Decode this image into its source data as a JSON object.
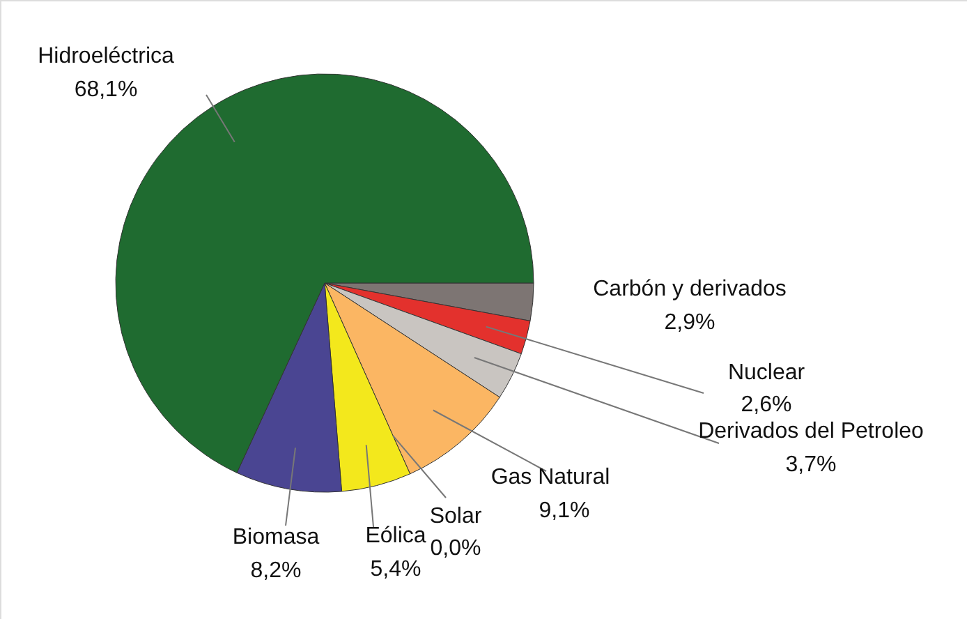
{
  "chart_data": {
    "type": "pie",
    "categories": [
      "Carbón y derivados",
      "Nuclear",
      "Derivados del Petroleo",
      "Gas Natural",
      "Solar",
      "Eólica",
      "Biomasa",
      "Hidroeléctrica"
    ],
    "values": [
      2.9,
      2.6,
      3.7,
      9.1,
      0.0,
      5.4,
      8.2,
      68.1
    ],
    "value_labels": [
      "2,9%",
      "2,6%",
      "3,7%",
      "9,1%",
      "0,0%",
      "5,4%",
      "8,2%",
      "68,1%"
    ],
    "colors": [
      "#7d7573",
      "#e3312d",
      "#c9c5c1",
      "#fbb663",
      "#f7ef3c",
      "#f3e81c",
      "#4a4592",
      "#1f6b30"
    ],
    "legend": false
  }
}
